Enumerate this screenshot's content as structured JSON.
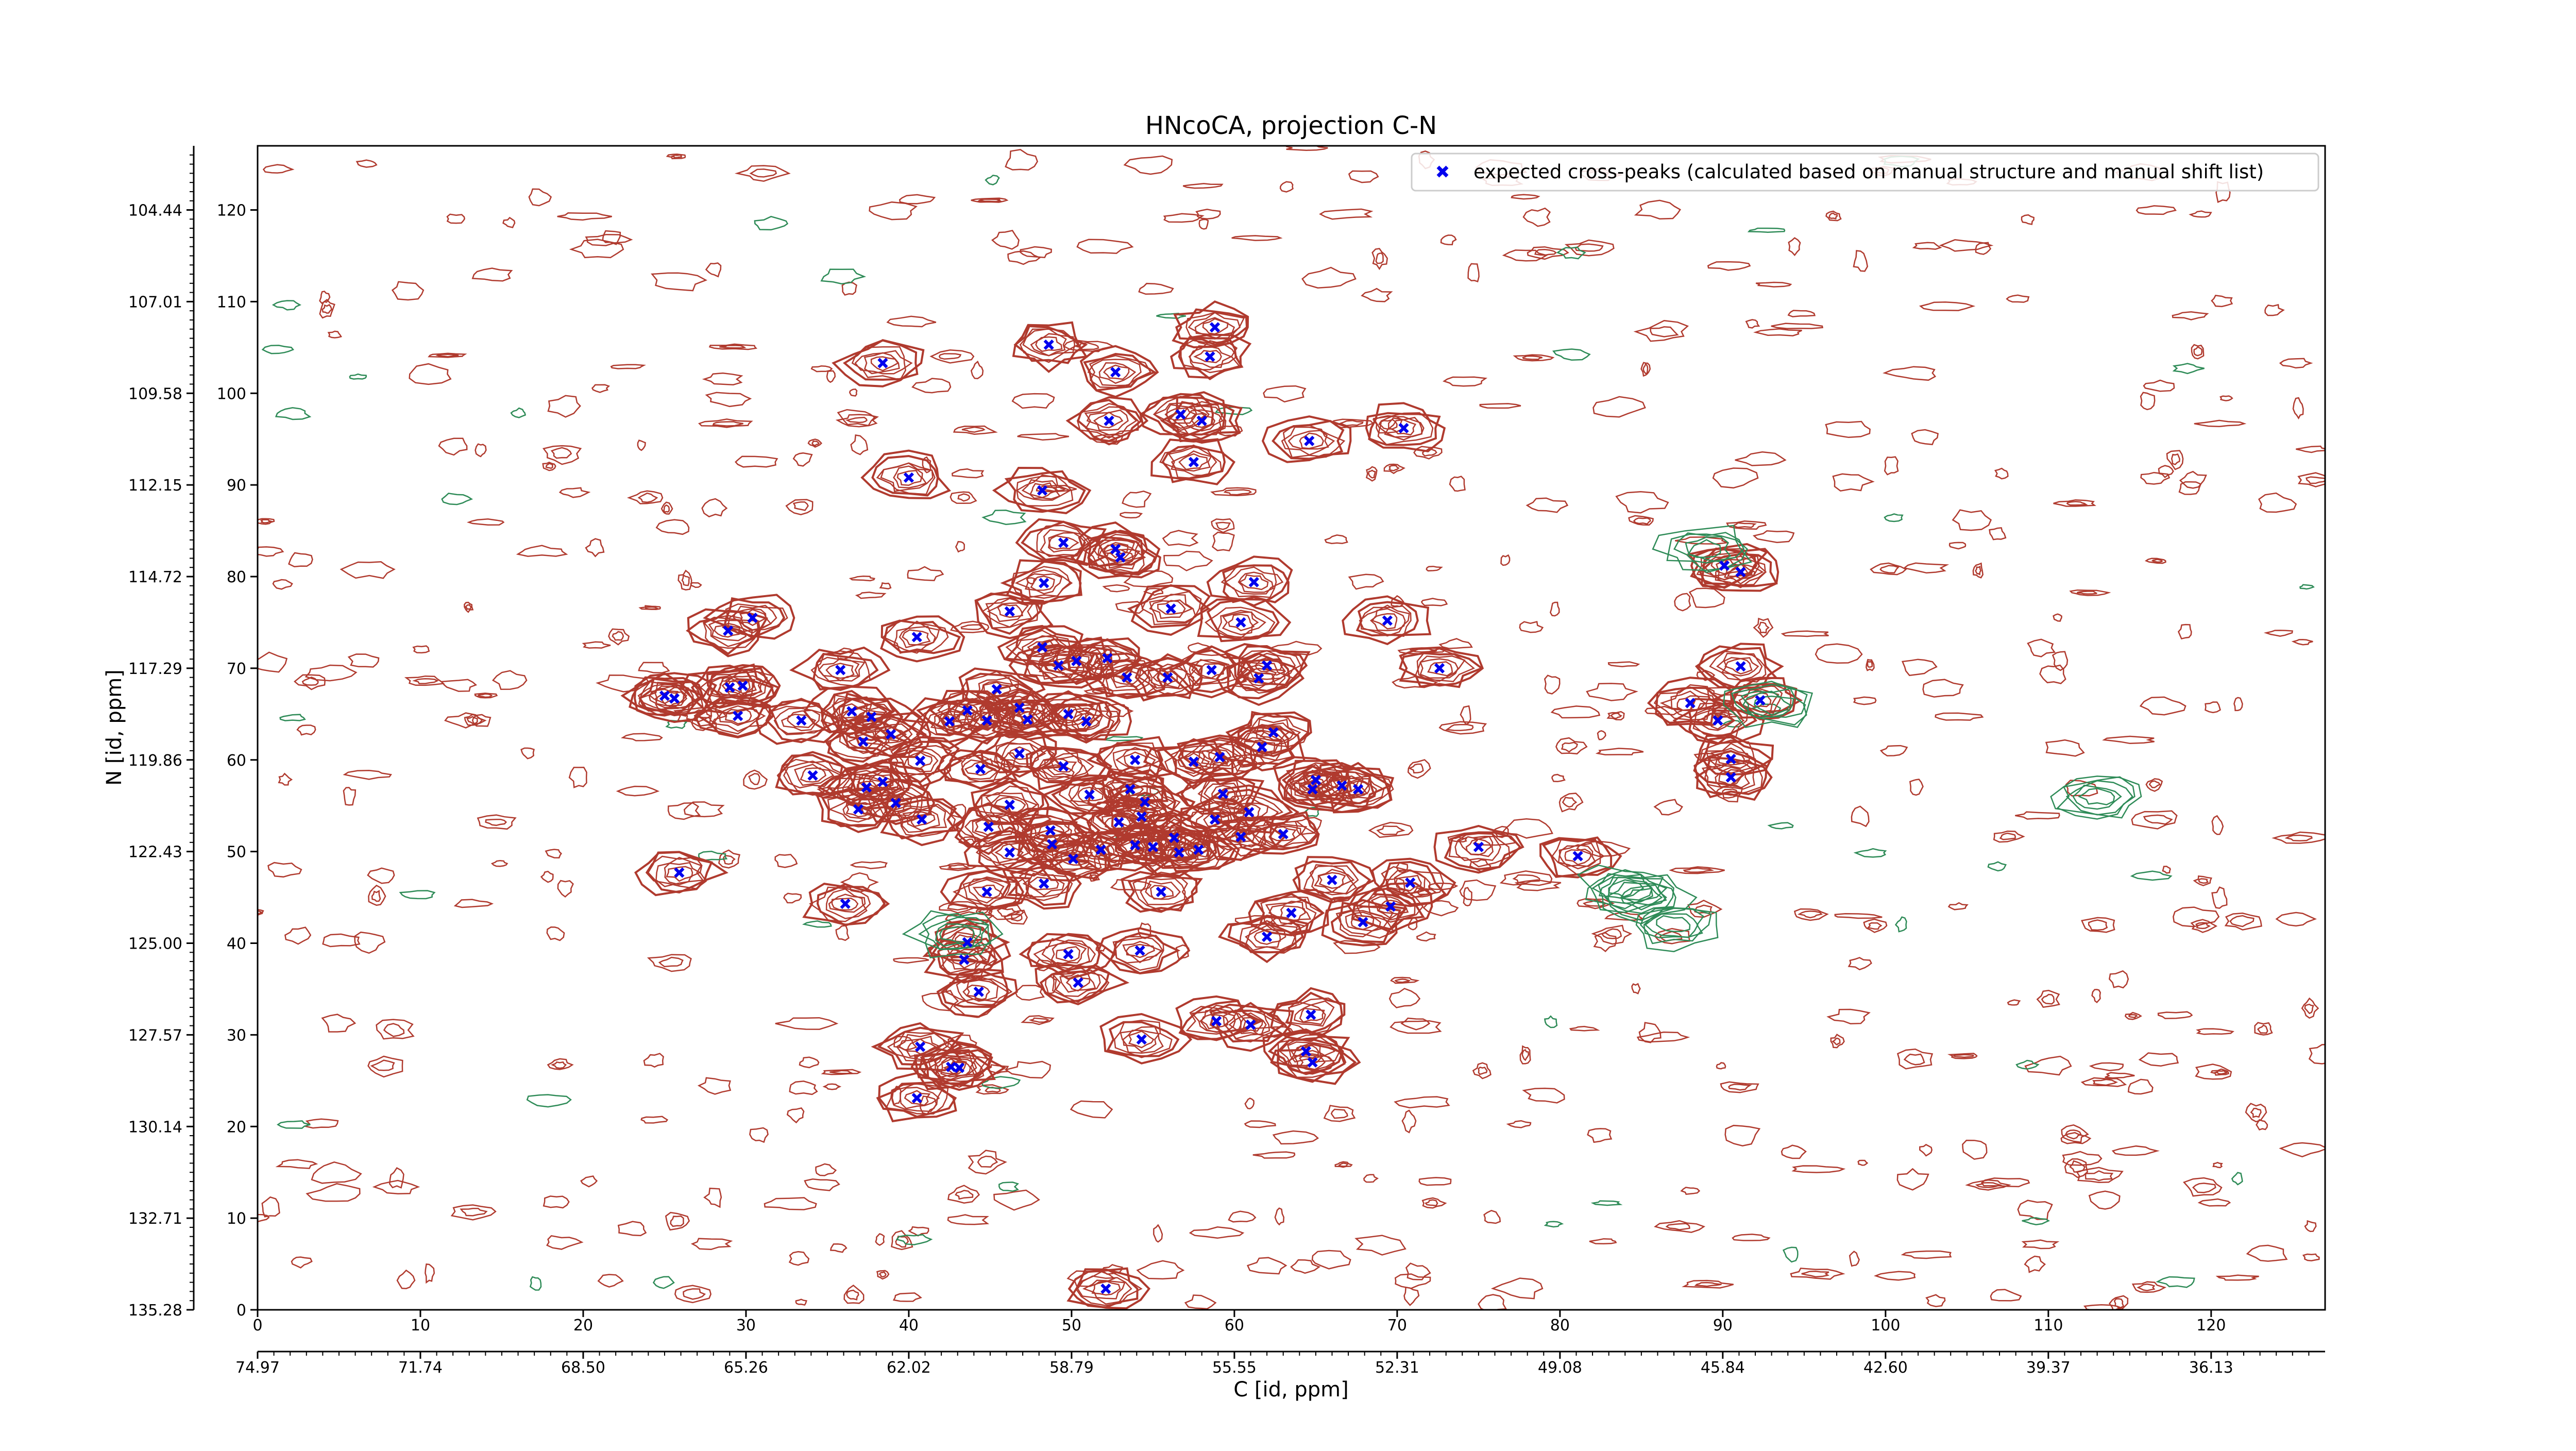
{
  "chart_data": {
    "type": "scatter",
    "title": "HNcoCA, projection C-N",
    "xlabel": "C [id, ppm]",
    "ylabel": "N [id, ppm]",
    "xlim": [
      0,
      127
    ],
    "ylim": [
      0,
      127
    ],
    "grid": false,
    "legend_position": "top-right",
    "x_index_ticks": [
      0,
      10,
      20,
      30,
      40,
      50,
      60,
      70,
      80,
      90,
      100,
      110,
      120
    ],
    "x_ppm_ticks": [
      "74.97",
      "71.74",
      "68.50",
      "65.26",
      "62.02",
      "58.79",
      "55.55",
      "52.31",
      "49.08",
      "45.84",
      "42.60",
      "39.37",
      "36.13"
    ],
    "y_index_ticks": [
      0,
      10,
      20,
      30,
      40,
      50,
      60,
      70,
      80,
      90,
      100,
      110,
      120
    ],
    "y_ppm_ticks": [
      "135.28",
      "132.71",
      "130.14",
      "127.57",
      "125.00",
      "122.43",
      "119.86",
      "117.29",
      "114.72",
      "112.15",
      "109.58",
      "107.01",
      "104.44"
    ],
    "colors": {
      "peaks": "#0000ee",
      "positive_contours": "#b03a2e",
      "negative_contours": "#2e8b57"
    },
    "series": [
      {
        "name": "expected cross-peaks (calculated based on manual structure and manual shift list)",
        "marker": "x",
        "points": [
          [
            38.4,
            103.3
          ],
          [
            48.6,
            105.3
          ],
          [
            52.7,
            102.3
          ],
          [
            58.8,
            107.2
          ],
          [
            58.5,
            104.0
          ],
          [
            52.3,
            97.0
          ],
          [
            56.7,
            97.7
          ],
          [
            58.0,
            97.0
          ],
          [
            57.5,
            92.5
          ],
          [
            64.6,
            94.8
          ],
          [
            70.4,
            96.2
          ],
          [
            40.0,
            90.8
          ],
          [
            48.2,
            89.4
          ],
          [
            49.5,
            83.7
          ],
          [
            53.0,
            82.1
          ],
          [
            52.7,
            83.0
          ],
          [
            48.3,
            79.3
          ],
          [
            61.2,
            79.4
          ],
          [
            46.2,
            76.2
          ],
          [
            56.1,
            76.5
          ],
          [
            60.4,
            75.0
          ],
          [
            69.4,
            75.2
          ],
          [
            72.6,
            70.0
          ],
          [
            90.1,
            81.2
          ],
          [
            91.1,
            80.5
          ],
          [
            28.9,
            74.1
          ],
          [
            30.4,
            75.5
          ],
          [
            40.5,
            73.4
          ],
          [
            48.2,
            72.3
          ],
          [
            49.2,
            70.3
          ],
          [
            50.3,
            70.8
          ],
          [
            52.2,
            71.1
          ],
          [
            53.4,
            69.0
          ],
          [
            55.9,
            69.0
          ],
          [
            58.6,
            69.8
          ],
          [
            61.5,
            68.9
          ],
          [
            62.0,
            70.3
          ],
          [
            45.4,
            67.7
          ],
          [
            46.8,
            65.7
          ],
          [
            25.0,
            67.0
          ],
          [
            25.6,
            66.7
          ],
          [
            29.0,
            67.9
          ],
          [
            29.8,
            68.1
          ],
          [
            35.8,
            69.8
          ],
          [
            33.4,
            64.3
          ],
          [
            36.5,
            65.3
          ],
          [
            37.7,
            64.7
          ],
          [
            38.9,
            62.8
          ],
          [
            37.2,
            62.0
          ],
          [
            44.8,
            64.3
          ],
          [
            47.3,
            64.4
          ],
          [
            49.8,
            65.0
          ],
          [
            50.9,
            64.2
          ],
          [
            29.5,
            64.8
          ],
          [
            42.5,
            64.2
          ],
          [
            43.6,
            65.4
          ],
          [
            46.8,
            60.7
          ],
          [
            62.4,
            63.0
          ],
          [
            61.7,
            61.4
          ],
          [
            59.1,
            60.3
          ],
          [
            57.5,
            59.8
          ],
          [
            53.9,
            60.0
          ],
          [
            40.7,
            59.9
          ],
          [
            44.4,
            59.0
          ],
          [
            49.5,
            59.3
          ],
          [
            37.4,
            57.0
          ],
          [
            38.4,
            57.6
          ],
          [
            39.2,
            55.3
          ],
          [
            46.2,
            55.1
          ],
          [
            44.9,
            52.7
          ],
          [
            48.7,
            52.3
          ],
          [
            40.8,
            53.5
          ],
          [
            34.1,
            58.3
          ],
          [
            36.9,
            54.6
          ],
          [
            51.1,
            56.2
          ],
          [
            53.6,
            56.8
          ],
          [
            54.5,
            55.4
          ],
          [
            54.3,
            53.8
          ],
          [
            52.9,
            53.2
          ],
          [
            55.0,
            50.5
          ],
          [
            56.3,
            51.5
          ],
          [
            58.8,
            53.5
          ],
          [
            60.4,
            51.6
          ],
          [
            57.8,
            50.2
          ],
          [
            60.9,
            54.3
          ],
          [
            59.3,
            56.3
          ],
          [
            65.0,
            57.8
          ],
          [
            66.6,
            57.2
          ],
          [
            67.6,
            56.8
          ],
          [
            64.8,
            56.8
          ],
          [
            46.2,
            49.9
          ],
          [
            48.8,
            50.8
          ],
          [
            50.1,
            49.2
          ],
          [
            51.8,
            50.2
          ],
          [
            53.9,
            50.7
          ],
          [
            56.6,
            49.9
          ],
          [
            63.0,
            51.9
          ],
          [
            75.0,
            50.5
          ],
          [
            81.1,
            49.5
          ],
          [
            25.9,
            47.7
          ],
          [
            44.8,
            45.6
          ],
          [
            48.3,
            46.5
          ],
          [
            55.5,
            45.6
          ],
          [
            63.5,
            43.3
          ],
          [
            66.0,
            46.9
          ],
          [
            67.9,
            42.3
          ],
          [
            70.8,
            46.6
          ],
          [
            69.6,
            44.0
          ],
          [
            62.0,
            40.7
          ],
          [
            36.1,
            44.3
          ],
          [
            43.6,
            40.1
          ],
          [
            43.4,
            38.2
          ],
          [
            49.8,
            38.8
          ],
          [
            54.2,
            39.2
          ],
          [
            50.4,
            35.7
          ],
          [
            44.3,
            34.7
          ],
          [
            54.3,
            29.5
          ],
          [
            58.9,
            31.5
          ],
          [
            61.0,
            31.1
          ],
          [
            64.7,
            32.2
          ],
          [
            64.4,
            28.2
          ],
          [
            64.8,
            27.0
          ],
          [
            40.7,
            28.7
          ],
          [
            42.6,
            26.5
          ],
          [
            43.1,
            26.4
          ],
          [
            40.5,
            23.1
          ],
          [
            52.1,
            2.3
          ],
          [
            88.0,
            66.2
          ],
          [
            89.7,
            64.3
          ],
          [
            91.1,
            70.2
          ],
          [
            92.3,
            66.5
          ],
          [
            90.5,
            60.1
          ],
          [
            90.5,
            58.1
          ]
        ]
      }
    ]
  }
}
